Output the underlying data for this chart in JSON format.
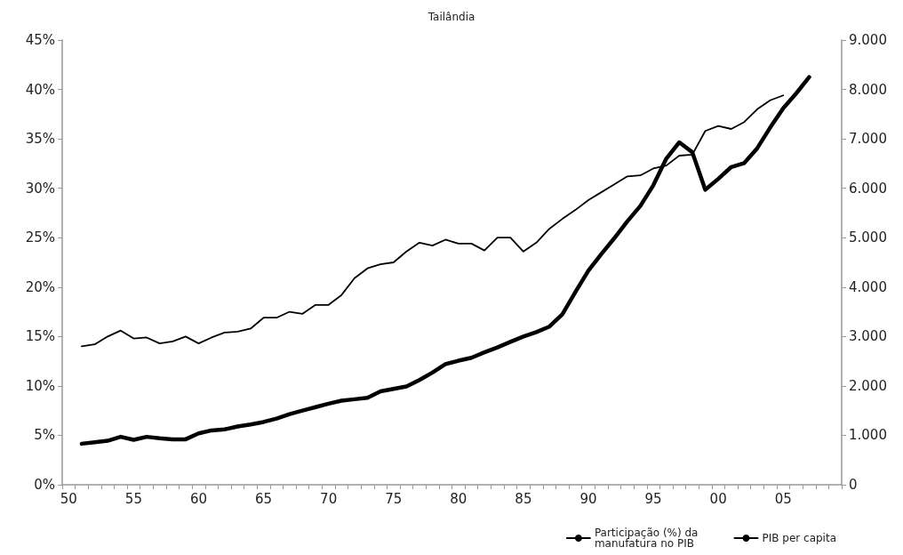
{
  "chart_data": {
    "type": "line",
    "title": "Tailândia",
    "categories": [
      "50",
      null,
      null,
      null,
      null,
      "55",
      null,
      null,
      null,
      null,
      "60",
      null,
      null,
      null,
      null,
      "65",
      null,
      null,
      null,
      null,
      "70",
      null,
      null,
      null,
      null,
      "75",
      null,
      null,
      null,
      null,
      "80",
      null,
      null,
      null,
      null,
      "85",
      null,
      null,
      null,
      null,
      "90",
      null,
      null,
      null,
      null,
      "95",
      null,
      null,
      null,
      null,
      "00",
      null,
      null,
      null,
      null,
      "05",
      null,
      null,
      null,
      null
    ],
    "series": [
      {
        "name": "Participação (%) da\nmanufatura no PIB",
        "color": "#000000",
        "values": [
          null,
          14.0,
          14.2,
          15.0,
          15.6,
          14.8,
          14.9,
          14.3,
          14.5,
          15.0,
          14.3,
          14.9,
          15.4,
          15.5,
          15.8,
          16.9,
          16.9,
          17.5,
          17.3,
          18.2,
          18.2,
          19.2,
          20.9,
          21.9,
          22.3,
          22.5,
          23.6,
          24.5,
          24.2,
          24.8,
          24.4,
          24.4,
          23.7,
          25.0,
          25.0,
          23.6,
          24.5,
          25.9,
          26.9,
          27.8,
          28.8,
          29.6,
          30.4,
          31.2,
          31.3,
          32.0,
          32.3,
          33.3,
          33.4,
          35.8,
          36.3,
          36.0,
          36.7,
          38.0,
          38.9,
          39.4,
          null,
          null,
          null,
          null
        ]
      },
      {
        "name": "PIB per capita",
        "color": "#000000",
        "axis": "y2",
        "values": [
          null,
          830,
          860,
          890,
          970,
          910,
          970,
          940,
          920,
          920,
          1040,
          1100,
          1120,
          1180,
          1220,
          1270,
          1340,
          1430,
          1500,
          1570,
          1640,
          1700,
          1730,
          1760,
          1890,
          1940,
          1990,
          2120,
          2270,
          2440,
          2510,
          2570,
          2680,
          2780,
          2890,
          3000,
          3090,
          3200,
          3450,
          3900,
          4330,
          4670,
          4990,
          5330,
          5640,
          6060,
          6600,
          6930,
          6730,
          5970,
          6190,
          6430,
          6510,
          6810,
          7230,
          7620,
          7920,
          8250,
          null,
          null
        ]
      }
    ],
    "ylim": [
      0,
      45
    ],
    "yticks": [
      {
        "value": 0,
        "label": "0%"
      },
      {
        "value": 5,
        "label": "5%"
      },
      {
        "value": 10,
        "label": "10%"
      },
      {
        "value": 15,
        "label": "15%"
      },
      {
        "value": 20,
        "label": "20%"
      },
      {
        "value": 25,
        "label": "25%"
      },
      {
        "value": 30,
        "label": "30%"
      },
      {
        "value": 35,
        "label": "35%"
      },
      {
        "value": 40,
        "label": "40%"
      },
      {
        "value": 45,
        "label": "45%"
      }
    ],
    "y2lim": [
      0,
      9000
    ],
    "y2ticks": [
      0,
      {
        "value": 1000,
        "label": "1.000"
      },
      {
        "value": 2000,
        "label": "2.000"
      },
      {
        "value": 3000,
        "label": "3.000"
      },
      {
        "value": 4000,
        "label": "4.000"
      },
      {
        "value": 5000,
        "label": "5.000"
      },
      {
        "value": 6000,
        "label": "6.000"
      },
      {
        "value": 7000,
        "label": "7.000"
      },
      {
        "value": 8000,
        "label": "8.000"
      },
      {
        "value": 9000,
        "label": "9.000"
      }
    ],
    "grid": false,
    "legend": "bottom right",
    "marker": "none",
    "line_style": "solid"
  }
}
